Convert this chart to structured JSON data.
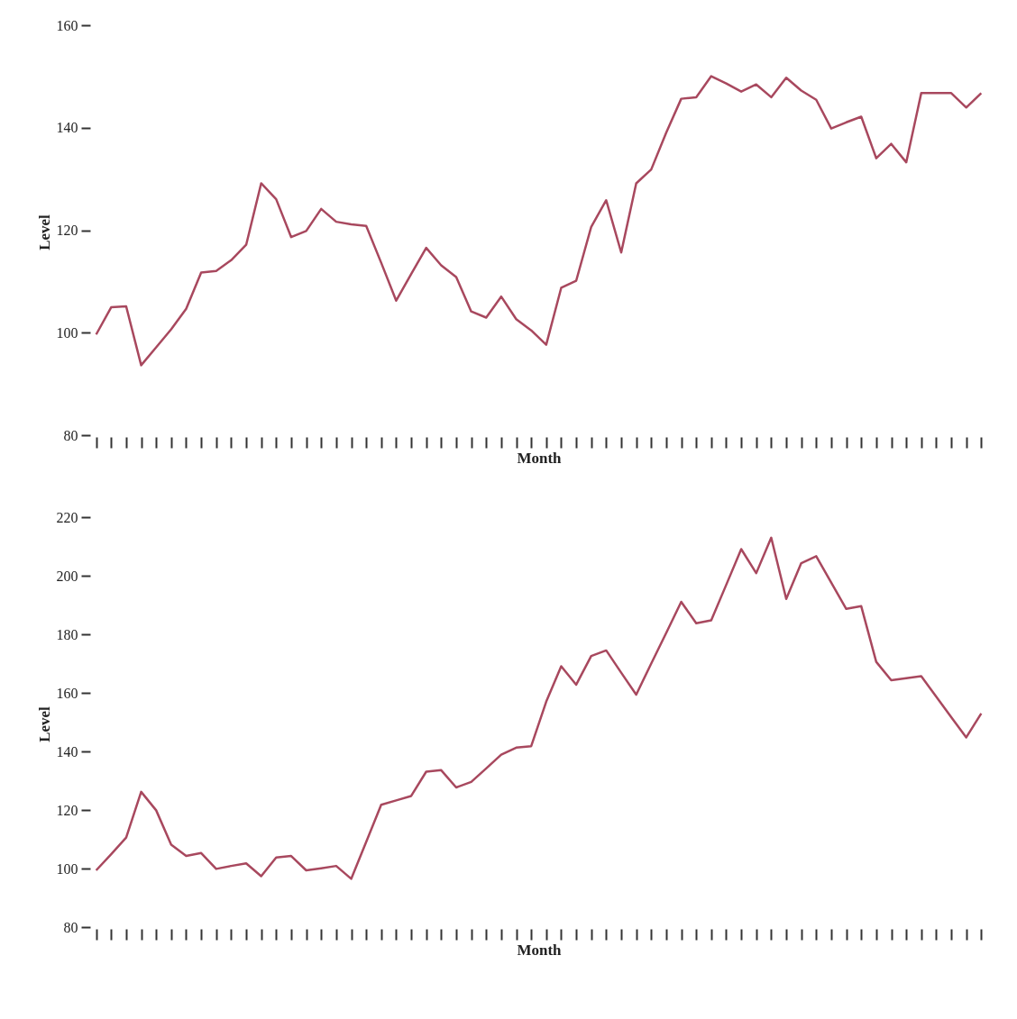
{
  "chart_data": [
    {
      "type": "line",
      "xlabel": "Month",
      "ylabel": "Level",
      "ylim": [
        80,
        160
      ],
      "yticks": [
        80,
        100,
        120,
        140,
        160
      ],
      "tick_labels": "y",
      "grid": false,
      "categories": [
        null,
        null,
        null,
        null,
        null,
        null,
        null,
        null,
        null,
        null,
        null,
        null,
        null,
        null,
        null,
        null,
        null,
        null,
        null,
        null,
        null,
        null,
        null,
        null,
        null,
        null,
        null,
        null,
        null,
        null,
        null,
        null,
        null,
        null,
        null,
        null,
        null,
        null,
        null,
        null,
        null,
        null,
        null,
        null,
        null,
        null,
        null,
        null,
        null,
        null,
        null,
        null,
        null,
        null,
        null,
        null,
        null,
        null,
        null,
        null
      ],
      "series": [
        {
          "color": "#a8485e",
          "values": [
            100,
            105.3,
            105.5,
            94,
            97.5,
            101,
            105,
            112.1,
            112.4,
            114.5,
            117.5,
            129.5,
            126.4,
            119,
            120.2,
            124.5,
            122,
            121.5,
            121.2,
            114,
            106.6,
            111.8,
            116.9,
            113.5,
            111.2,
            104.5,
            103.3,
            107.4,
            103,
            100.8,
            98,
            109.1,
            110.5,
            121,
            126.2,
            116,
            129.5,
            132.2,
            139.4,
            146,
            146.3,
            150.4,
            149,
            147.4,
            148.8,
            146.3,
            150.1,
            147.6,
            145.8,
            140.2,
            141.4,
            142.5,
            134.4,
            137.2,
            133.6,
            147.1,
            147.1,
            147.1,
            144.3,
            147.1
          ]
        }
      ]
    },
    {
      "type": "line",
      "xlabel": "Month",
      "ylabel": "Level",
      "ylim": [
        80,
        220
      ],
      "yticks": [
        80,
        100,
        120,
        140,
        160,
        180,
        200,
        220
      ],
      "tick_labels": "y",
      "grid": false,
      "categories": [
        null,
        null,
        null,
        null,
        null,
        null,
        null,
        null,
        null,
        null,
        null,
        null,
        null,
        null,
        null,
        null,
        null,
        null,
        null,
        null,
        null,
        null,
        null,
        null,
        null,
        null,
        null,
        null,
        null,
        null,
        null,
        null,
        null,
        null,
        null,
        null,
        null,
        null,
        null,
        null,
        null,
        null,
        null,
        null,
        null,
        null,
        null,
        null,
        null,
        null,
        null,
        null,
        null,
        null,
        null,
        null,
        null,
        null,
        null,
        null
      ],
      "series": [
        {
          "color": "#a8485e",
          "values": [
            100,
            105.5,
            111.2,
            126.8,
            120.5,
            108.8,
            104.9,
            105.9,
            100.5,
            101.5,
            102.4,
            98,
            104.4,
            104.9,
            100,
            100.7,
            101.5,
            97.1,
            109.7,
            122.4,
            123.9,
            125.4,
            133.7,
            134.2,
            128.3,
            130.2,
            134.8,
            139.5,
            141.9,
            142.4,
            157.6,
            169.7,
            163.4,
            173.2,
            175.1,
            167.5,
            160,
            170.6,
            181.1,
            191.7,
            184.4,
            185.4,
            197.5,
            209.7,
            201.5,
            213.6,
            192.7,
            204.9,
            207.3,
            198.3,
            189.3,
            190.2,
            171.2,
            164.9,
            165.6,
            166.3,
            159.3,
            152.3,
            145.4,
            153.6
          ]
        }
      ]
    }
  ]
}
